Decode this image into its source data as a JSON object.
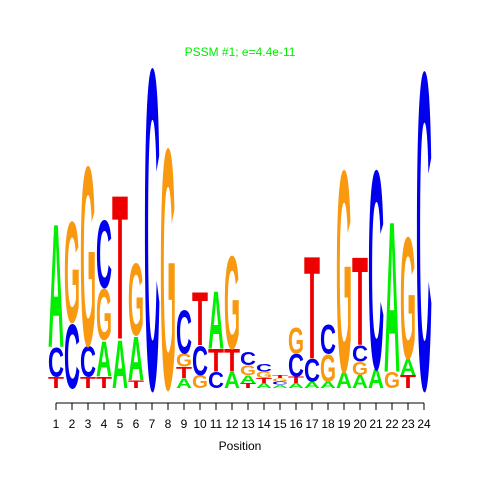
{
  "chart_data": {
    "type": "logo",
    "title": "PSSM #1; e=4.4e-11",
    "title_color": "#00ee00",
    "xlabel": "Position",
    "categories": [
      "1",
      "2",
      "3",
      "4",
      "5",
      "6",
      "7",
      "8",
      "9",
      "10",
      "11",
      "12",
      "13",
      "14",
      "15",
      "16",
      "17",
      "18",
      "19",
      "20",
      "21",
      "22",
      "23",
      "24"
    ],
    "ylim": [
      0,
      2
    ],
    "series": [
      {
        "name": "A",
        "color": "#00ee00",
        "values": [
          0.77,
          0,
          0,
          0.22,
          0.3,
          0.27,
          0,
          0,
          0.06,
          0,
          0.36,
          0.1,
          0.05,
          0.03,
          0.02,
          0.03,
          0.04,
          0.04,
          0.1,
          0.08,
          0.12,
          0.94,
          0.1,
          0
        ]
      },
      {
        "name": "C",
        "color": "#0000ee",
        "values": [
          0.18,
          0.4,
          0.19,
          0.42,
          0,
          0,
          2.0,
          0,
          0.27,
          0.18,
          0.1,
          0,
          0.08,
          0.05,
          0.02,
          0.14,
          0.14,
          0.18,
          0,
          0.1,
          1.24,
          0,
          0,
          1.98
        ]
      },
      {
        "name": "G",
        "color": "#f8990f",
        "values": [
          0,
          0.63,
          1.12,
          0.32,
          0,
          0.45,
          0,
          1.5,
          0.08,
          0.08,
          0,
          0.58,
          0.06,
          0.04,
          0.02,
          0.16,
          0,
          0.17,
          1.26,
          0.08,
          0,
          0.1,
          0.76,
          0
        ]
      },
      {
        "name": "T",
        "color": "#ee0000",
        "values": [
          0.07,
          0,
          0.07,
          0.07,
          0.9,
          0.05,
          0,
          0,
          0.07,
          0.33,
          0.14,
          0.14,
          0.03,
          0.03,
          0.02,
          0.04,
          0.64,
          0,
          0,
          0.55,
          0,
          0,
          0.08,
          0
        ]
      }
    ]
  }
}
